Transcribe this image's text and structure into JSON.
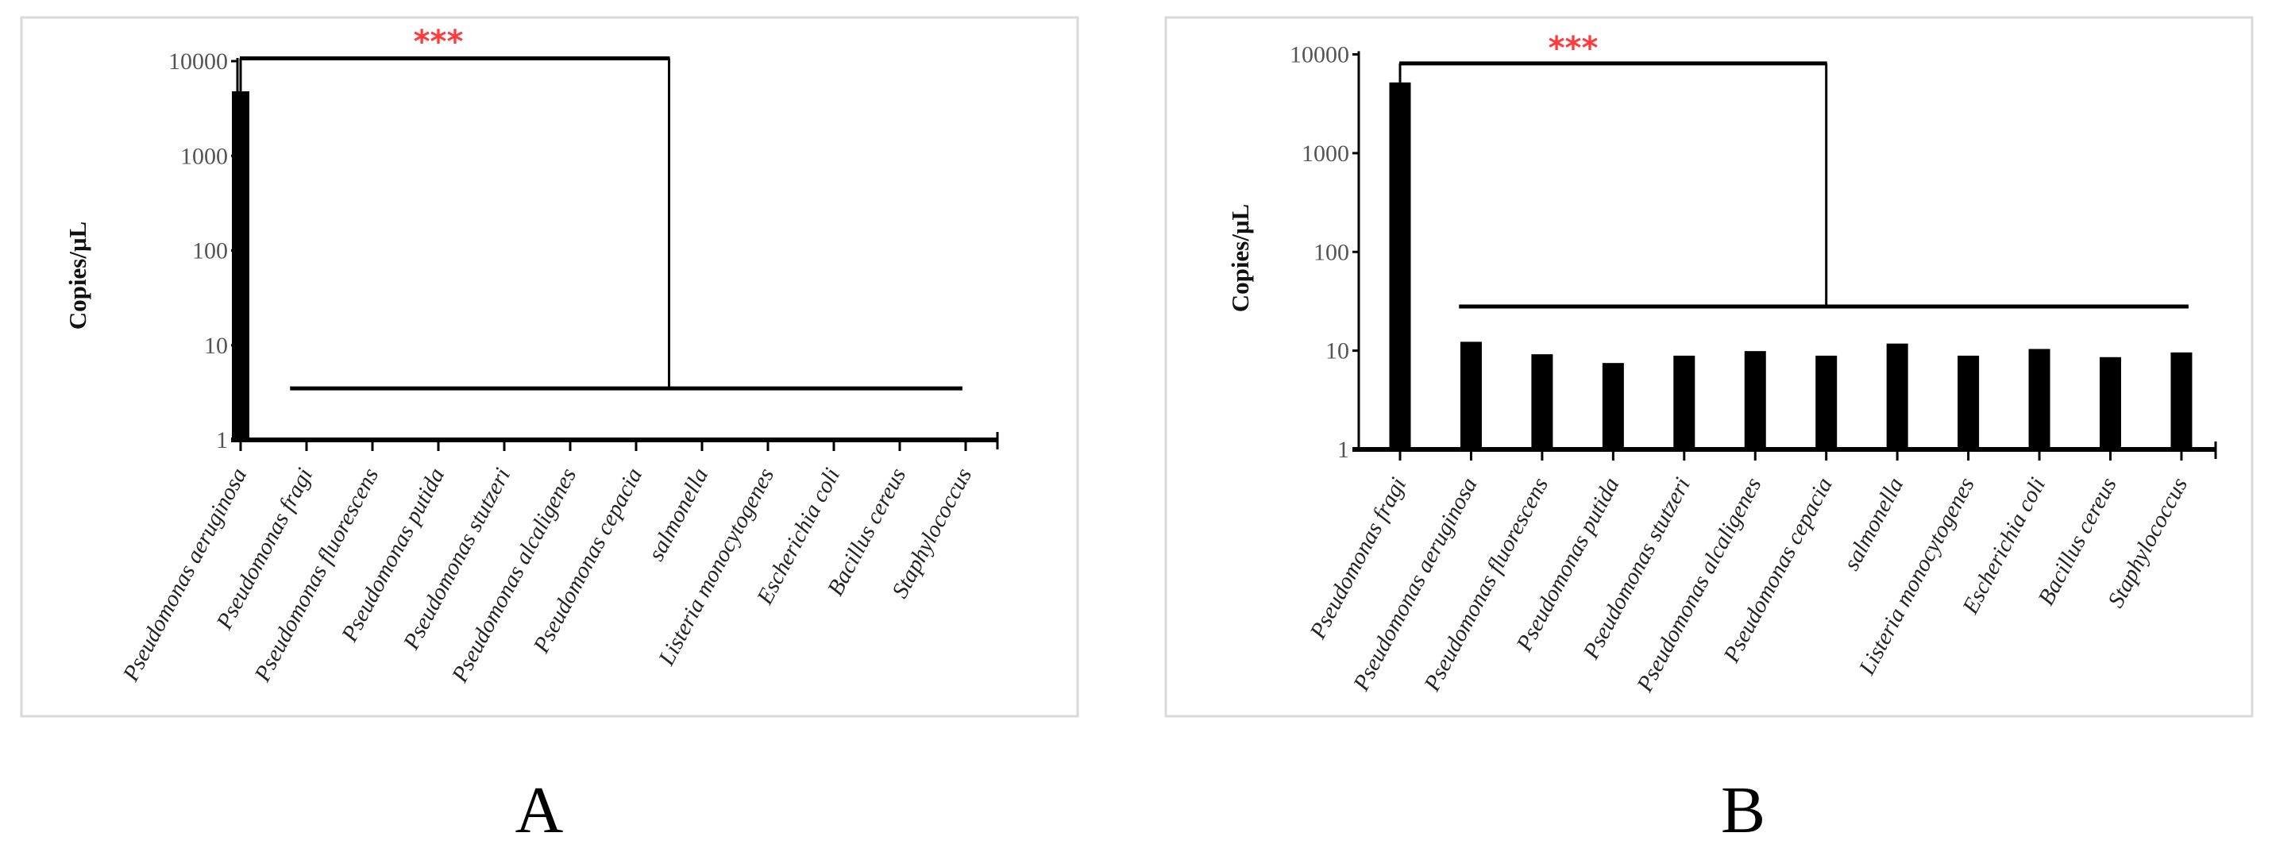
{
  "chart_data": [
    {
      "panel_label": "A",
      "type": "bar",
      "ylabel": "Copies/μL",
      "yscale": "log",
      "ylim": [
        1,
        10000
      ],
      "yticks": [
        "1",
        "10",
        "100",
        "1000",
        "10000"
      ],
      "grid": false,
      "categories": [
        "Pseudomonas aeruginosa",
        "Pseudomonas fragi",
        "Pseudomonas fluorescens",
        "Pseudomonas putida",
        "Pseudomonas stutzeri",
        "Pseudomonas alcaligenes",
        "Pseudomonas cepacia",
        "salmonella",
        "Listeria monocytogenes",
        "Escherichia coli",
        "Bacillus cereus",
        "Staphylococcus"
      ],
      "values": [
        4800,
        null,
        null,
        null,
        null,
        null,
        null,
        null,
        null,
        null,
        null,
        null
      ],
      "bar_color": "#000000",
      "significance": {
        "label": "***",
        "color": "#ff3b3b",
        "bracket_top": 10700,
        "group_line": 3.5,
        "group_from": 0.75,
        "group_to": 10.95,
        "drop_at": 6.5
      }
    },
    {
      "panel_label": "B",
      "type": "bar",
      "ylabel": "Copies/μL",
      "yscale": "log",
      "ylim": [
        1,
        10000
      ],
      "yticks": [
        "1",
        "10",
        "100",
        "1000",
        "10000"
      ],
      "grid": false,
      "categories": [
        "Pseudomonas fragi",
        "Pseudomonas aeruginosa",
        "Pseudomonas fluorescens",
        "Pseudomonas putida",
        "Pseudomonas stutzeri",
        "Pseudomonas alcaligenes",
        "Pseudomonas cepacia",
        "salmonella",
        "Listeria monocytogenes",
        "Escherichia coli",
        "Bacillus cereus",
        "Staphylococcus"
      ],
      "values": [
        5200,
        12.3,
        9.2,
        7.5,
        8.9,
        9.9,
        8.9,
        11.8,
        8.9,
        10.4,
        8.6,
        9.6
      ],
      "bar_color": "#000000",
      "significance": {
        "label": "***",
        "color": "#ff3b3b",
        "bracket_top": 8100,
        "group_line": 28,
        "group_from": 0.83,
        "group_to": 11.1,
        "drop_at": 6.0
      }
    }
  ]
}
